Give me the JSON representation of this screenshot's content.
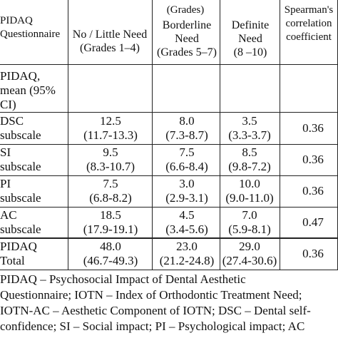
{
  "header": {
    "grades_label": "(Grades)",
    "col1": [
      "PIDAQ",
      "Questionnaire"
    ],
    "col2": [
      "No / Little Need",
      "(Grades 1–4)"
    ],
    "col3": [
      "Borderline",
      "Need",
      "(Grades 5–7)"
    ],
    "col4": [
      "Definite",
      "Need",
      "(8 –10)"
    ],
    "col5": [
      "Spearman's",
      "correlation",
      "coefficient"
    ]
  },
  "mean_label": [
    "PIDAQ,",
    "mean (95%",
    "CI)"
  ],
  "rows": [
    {
      "label": [
        "DSC",
        "subscale"
      ],
      "c1": [
        "12.5",
        "(11.7-13.3)"
      ],
      "c2": [
        "8.0",
        "(7.3-8.7)"
      ],
      "c3": [
        "3.5",
        "(3.3-3.7)"
      ],
      "rho": "0.36"
    },
    {
      "label": [
        "SI",
        "subscale"
      ],
      "c1": [
        "9.5",
        "(8.3-10.7)"
      ],
      "c2": [
        "7.5",
        "(6.6-8.4)"
      ],
      "c3": [
        "8.5",
        "(9.8-7.2)"
      ],
      "rho": "0.36"
    },
    {
      "label": [
        "PI",
        "subscale"
      ],
      "c1": [
        "7.5",
        "(6.8-8.2)"
      ],
      "c2": [
        "3.0",
        "(2.9-3.1)"
      ],
      "c3": [
        "10.0",
        "(9.0-11.0)"
      ],
      "rho": "0.36"
    },
    {
      "label": [
        "AC",
        "subscale"
      ],
      "c1": [
        "18.5",
        "(17.9-19.1)"
      ],
      "c2": [
        "4.5",
        "(3.4-5.6)"
      ],
      "c3": [
        "7.0",
        "(5.9-8.1)"
      ],
      "rho": "0.47"
    },
    {
      "label": [
        "PIDAQ",
        "Total"
      ],
      "c1": [
        "48.0",
        "(46.7-49.3)"
      ],
      "c2": [
        "23.0",
        "(21.2-24.8)"
      ],
      "c3": [
        "29.0",
        "(27.4-30.6)"
      ],
      "rho": "0.36"
    }
  ],
  "footnote": [
    "PIDAQ – Psychosocial Impact of Dental Aesthetic",
    "Questionnaire; IOTN – Index of Orthodontic Treatment Need;",
    "IOTN-AC – Aesthetic Component of IOTN; DSC – Dental self-",
    "confidence;  SI – Social impact; PI – Psychological impact; AC"
  ]
}
